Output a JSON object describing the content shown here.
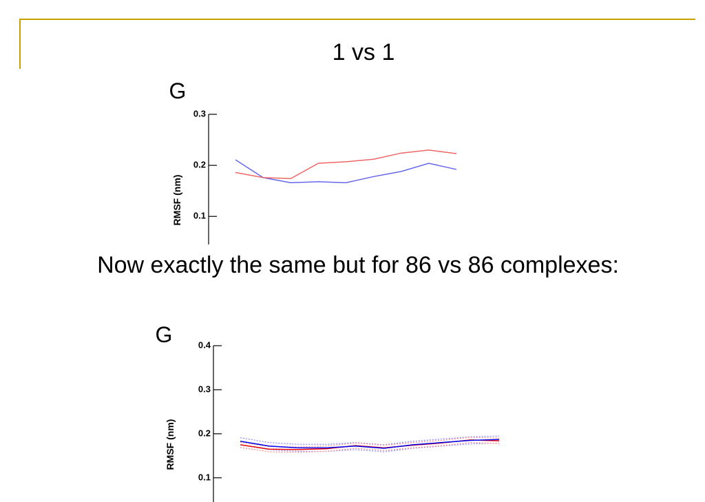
{
  "slide": {
    "title": "1 vs 1",
    "text": "Now exactly the same but for 86 vs 86 complexes:"
  },
  "chart_data": [
    {
      "type": "line",
      "panel": "G",
      "ylabel": "RMSF (nm)",
      "categories": [
        null,
        null,
        null,
        null,
        null,
        null,
        null,
        null,
        null
      ],
      "ylim": [
        0.045,
        0.3
      ],
      "yticks": [
        0.1,
        0.2,
        0.3
      ],
      "series": [
        {
          "color": "#6666ee",
          "values": [
            0.211,
            0.176,
            0.166,
            0.168,
            0.166,
            0.178,
            0.188,
            0.204,
            0.192
          ]
        },
        {
          "color": "#ee6666",
          "values": [
            0.186,
            0.176,
            0.174,
            0.204,
            0.207,
            0.212,
            0.224,
            0.23,
            0.223
          ]
        }
      ]
    },
    {
      "type": "line",
      "panel": "G",
      "ylabel": "RMSF (nm)",
      "categories": [
        null,
        null,
        null,
        null,
        null,
        null,
        null,
        null,
        null,
        null
      ],
      "ylim": [
        0.045,
        0.4
      ],
      "yticks": [
        0.1,
        0.2,
        0.3,
        0.4
      ],
      "series": [
        {
          "color": "#8888ff",
          "style": "dotted",
          "values": [
            0.191,
            0.18,
            0.176,
            0.176,
            0.18,
            0.175,
            0.183,
            0.188,
            0.193,
            0.195
          ]
        },
        {
          "color": "#8888ff",
          "style": "dotted",
          "values": [
            0.175,
            0.164,
            0.16,
            0.16,
            0.164,
            0.159,
            0.167,
            0.172,
            0.177,
            0.179
          ]
        },
        {
          "color": "#ff8888",
          "style": "dotted",
          "values": [
            0.181,
            0.171,
            0.17,
            0.172,
            0.179,
            0.174,
            0.18,
            0.185,
            0.192,
            0.19
          ]
        },
        {
          "color": "#ff8888",
          "style": "dotted",
          "values": [
            0.169,
            0.159,
            0.158,
            0.16,
            0.167,
            0.162,
            0.168,
            0.173,
            0.18,
            0.178
          ]
        },
        {
          "color": "#ee0000",
          "values": [
            0.175,
            0.165,
            0.164,
            0.166,
            0.173,
            0.168,
            0.174,
            0.179,
            0.186,
            0.184
          ]
        },
        {
          "color": "#0000ee",
          "values": [
            0.183,
            0.172,
            0.168,
            0.168,
            0.172,
            0.167,
            0.175,
            0.18,
            0.185,
            0.187
          ]
        }
      ]
    }
  ]
}
